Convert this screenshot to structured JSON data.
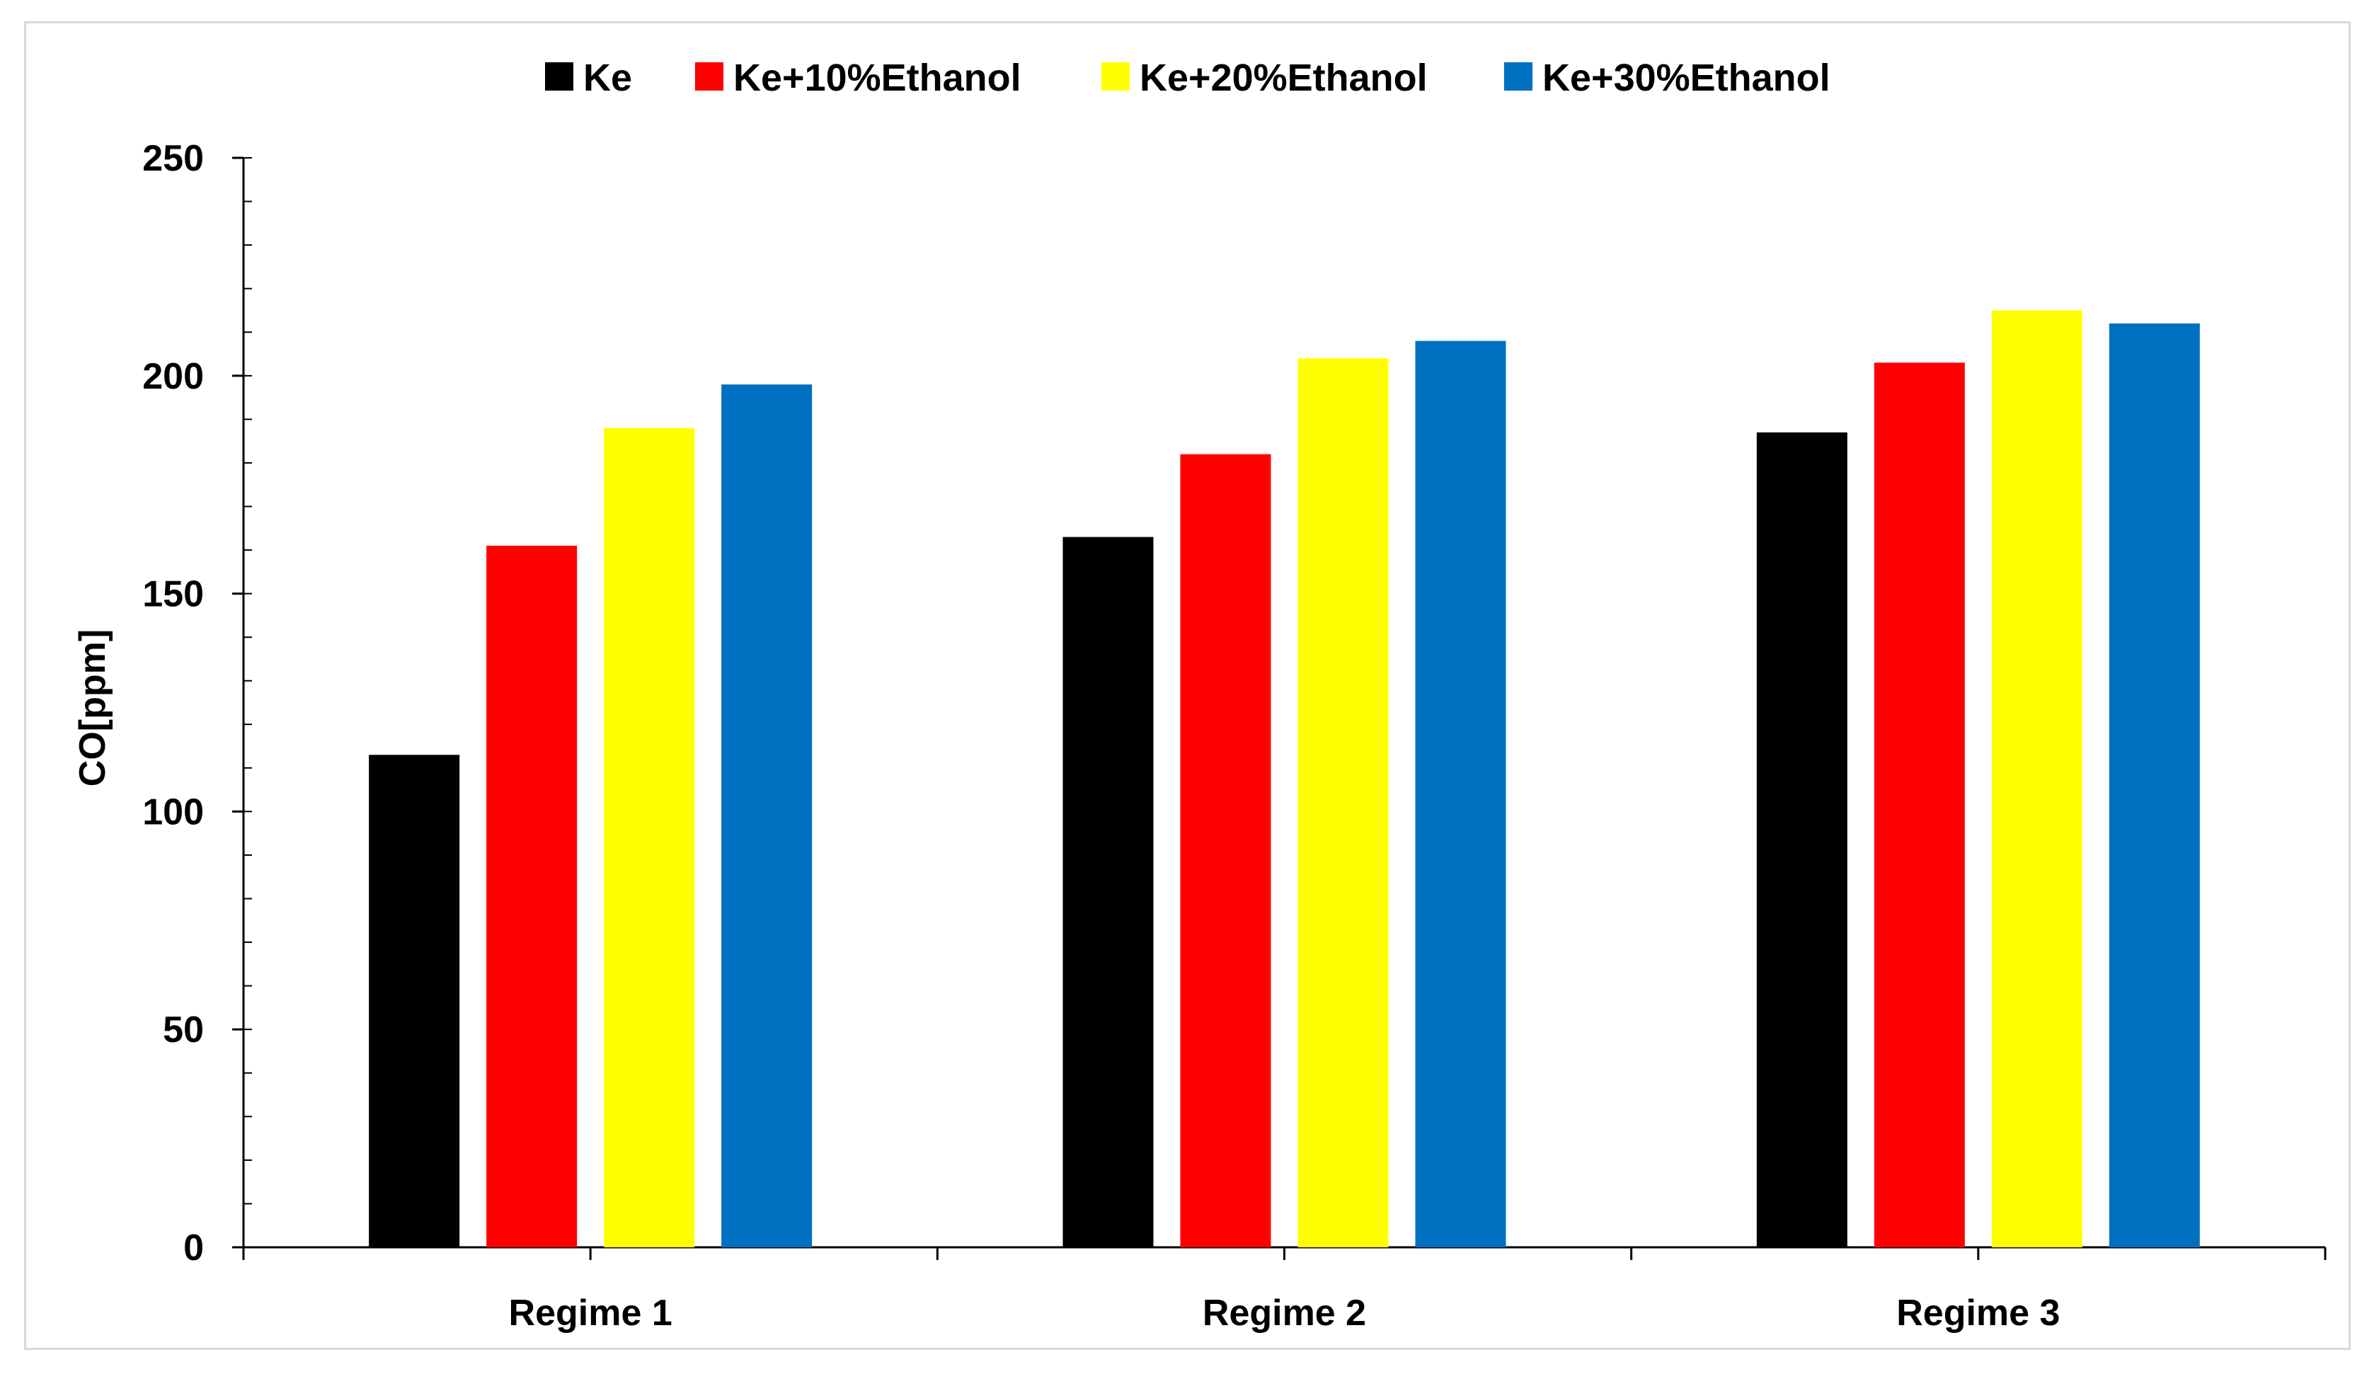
{
  "chart_data": {
    "type": "bar",
    "title": "",
    "xlabel": "",
    "ylabel": "CO[ppm]",
    "ylim": [
      0,
      250
    ],
    "yticks": [
      "0",
      "50",
      "100",
      "150",
      "200",
      "250"
    ],
    "grid": false,
    "legend_position": "top-center",
    "categories": [
      "Regime 1",
      "Regime 2",
      "Regime 3"
    ],
    "series": [
      {
        "name": "Ke",
        "color": "#000000",
        "values": [
          113,
          163,
          187
        ]
      },
      {
        "name": "Ke+10%Ethanol",
        "color": "#ff0000",
        "values": [
          161,
          182,
          203
        ]
      },
      {
        "name": "Ke+20%Ethanol",
        "color": "#ffff00",
        "values": [
          188,
          204,
          215
        ]
      },
      {
        "name": "Ke+30%Ethanol",
        "color": "#0070c0",
        "values": [
          198,
          208,
          212
        ]
      }
    ]
  }
}
